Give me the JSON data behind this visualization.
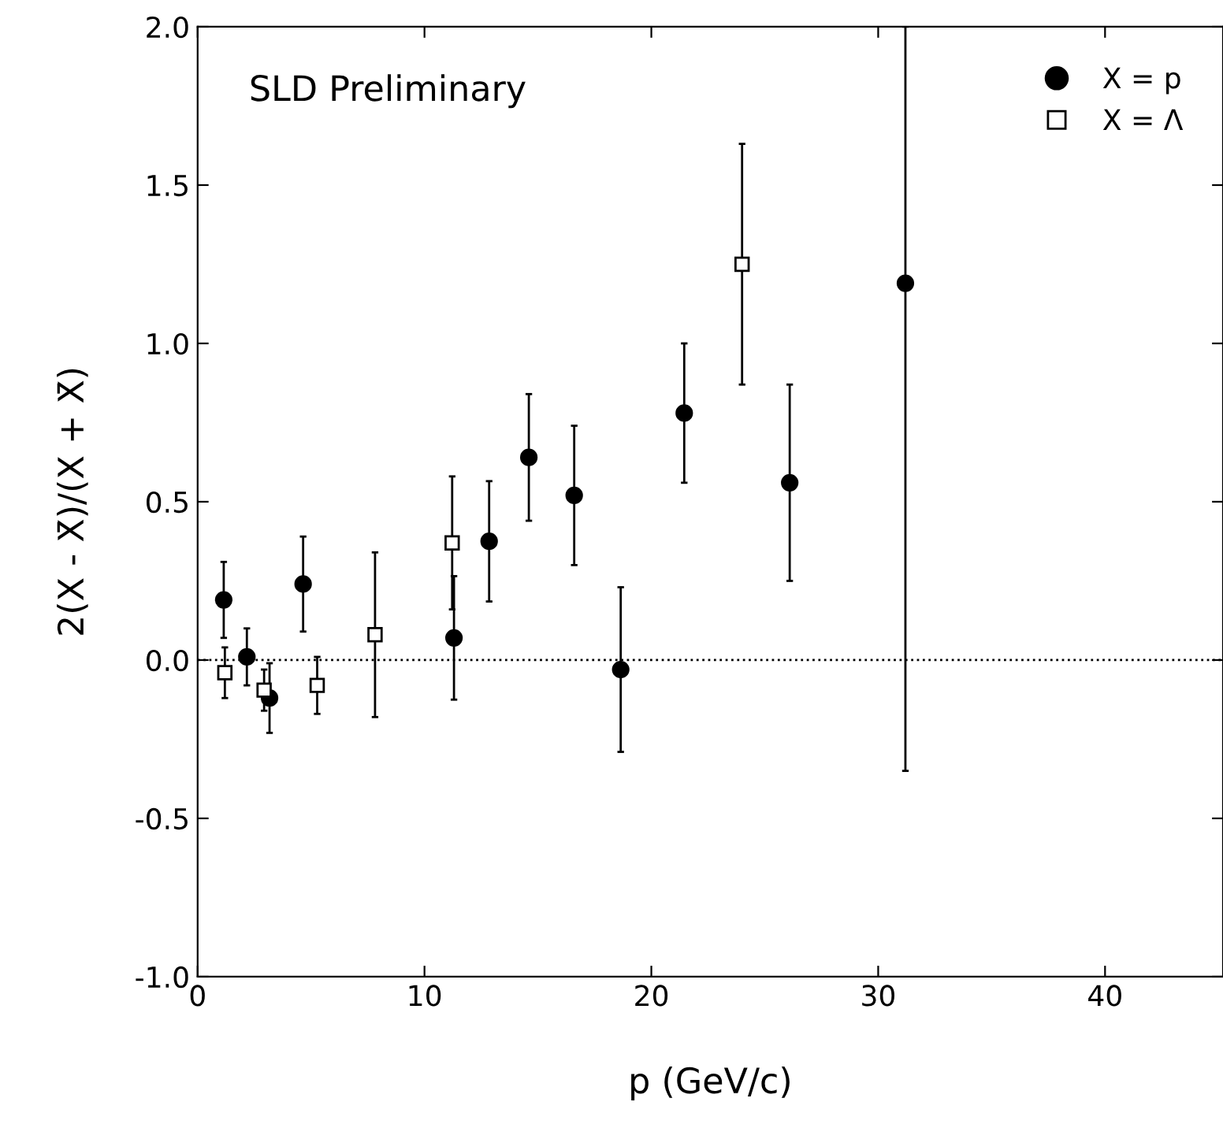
{
  "chart_data": {
    "type": "scatter",
    "xlabel": "p (GeV/c)",
    "ylabel": "2(X - X̄)/(X + X̄)",
    "annotations": [
      "SLD Preliminary"
    ],
    "xlim": [
      0,
      45.2
    ],
    "ylim": [
      -1.0,
      2.0
    ],
    "xticks": [
      0,
      10,
      20,
      30,
      40
    ],
    "yticks": [
      {
        "value": -1.0,
        "label": "-1.0"
      },
      {
        "value": -0.5,
        "label": "-0.5"
      },
      {
        "value": 0.0,
        "label": "0.0"
      },
      {
        "value": 0.5,
        "label": "0.5"
      },
      {
        "value": 1.0,
        "label": "1.0"
      },
      {
        "value": 1.5,
        "label": "1.5"
      },
      {
        "value": 2.0,
        "label": "2.0"
      }
    ],
    "grid": false,
    "legend": "top right",
    "ref_lines": [
      {
        "axis": "y",
        "value": 0,
        "line_style": "dotted",
        "color": "#000000"
      }
    ],
    "series": [
      {
        "name": "X = p",
        "color": "#000000",
        "marker": "circle",
        "x": [
          1.15,
          2.17,
          3.17,
          4.65,
          11.3,
          12.85,
          14.6,
          16.6,
          18.65,
          21.45,
          26.1,
          31.2
        ],
        "values": [
          0.19,
          0.01,
          -0.12,
          0.24,
          0.07,
          0.375,
          0.64,
          0.52,
          -0.03,
          0.78,
          0.56,
          1.19
        ],
        "errors": [
          0.12,
          0.09,
          0.11,
          0.15,
          0.195,
          0.19,
          0.2,
          0.22,
          0.26,
          0.22,
          0.31,
          [
            -0.35,
            2.0
          ]
        ]
      },
      {
        "name": "X = Λ",
        "color": "#000000",
        "marker": "square",
        "x": [
          1.2,
          2.93,
          5.27,
          7.82,
          11.22,
          24.0
        ],
        "values": [
          -0.04,
          -0.095,
          -0.08,
          0.08,
          0.37,
          1.25
        ],
        "errors": [
          0.08,
          0.065,
          0.09,
          0.26,
          0.21,
          0.38
        ]
      }
    ]
  }
}
